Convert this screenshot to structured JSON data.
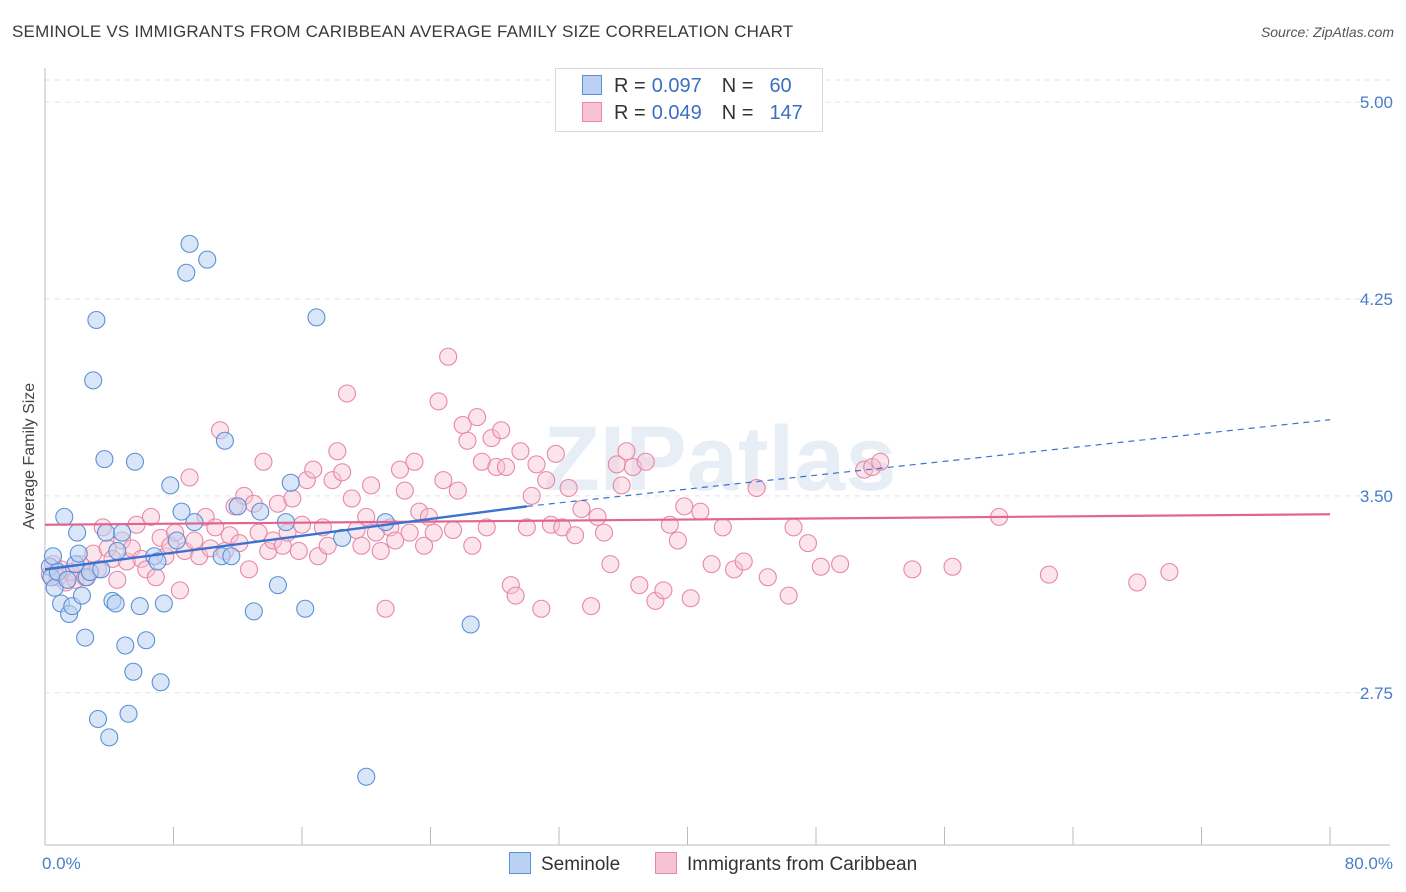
{
  "header": {
    "title": "SEMINOLE VS IMMIGRANTS FROM CARIBBEAN AVERAGE FAMILY SIZE CORRELATION CHART",
    "source": "Source: ZipAtlas.com"
  },
  "legend": {
    "rows": [
      {
        "r_label": "R =",
        "r_value": "0.097",
        "n_label": "N =",
        "n_value": "60"
      },
      {
        "r_label": "R =",
        "r_value": "0.049",
        "n_label": "N =",
        "n_value": "147"
      }
    ]
  },
  "watermark": "ZIPatlas",
  "colors": {
    "seminole_fill": "#b9d2f2",
    "seminole_stroke": "#5b8fd6",
    "seminole_line": "#3a72cf",
    "caribbean_fill": "#f7c3d3",
    "caribbean_stroke": "#e886a6",
    "caribbean_line": "#e0668f",
    "tick_label": "#4a7cc7",
    "grid": "#e2e2e2"
  },
  "chart_data": {
    "type": "scatter",
    "title": "SEMINOLE VS IMMIGRANTS FROM CARIBBEAN AVERAGE FAMILY SIZE CORRELATION CHART",
    "xlabel": "",
    "ylabel": "Average Family Size",
    "xlim": [
      0,
      80
    ],
    "ylim": [
      2.17,
      5.13
    ],
    "x_tick_labels": [
      "0.0%",
      "80.0%"
    ],
    "y_ticks": [
      2.75,
      3.5,
      4.25,
      5.0
    ],
    "y_tick_labels": [
      "2.75",
      "3.50",
      "4.25",
      "5.00"
    ],
    "grid": true,
    "legend_position": "bottom",
    "series": [
      {
        "name": "Seminole",
        "r": 0.097,
        "n": 60,
        "trend": {
          "x0": 0,
          "y0": 3.22,
          "x1": 30,
          "y1": 3.46,
          "x_ext": 80,
          "y_ext": 3.79
        },
        "points": [
          [
            0.3,
            3.23
          ],
          [
            0.4,
            3.19
          ],
          [
            0.5,
            3.27
          ],
          [
            0.6,
            3.15
          ],
          [
            0.8,
            3.21
          ],
          [
            1.0,
            3.09
          ],
          [
            1.2,
            3.42
          ],
          [
            1.4,
            3.18
          ],
          [
            1.5,
            3.05
          ],
          [
            1.7,
            3.08
          ],
          [
            1.9,
            3.24
          ],
          [
            2.0,
            3.36
          ],
          [
            2.1,
            3.28
          ],
          [
            2.3,
            3.12
          ],
          [
            2.5,
            2.96
          ],
          [
            2.6,
            3.19
          ],
          [
            2.8,
            3.21
          ],
          [
            3.0,
            3.94
          ],
          [
            3.2,
            4.17
          ],
          [
            3.3,
            2.65
          ],
          [
            3.5,
            3.22
          ],
          [
            3.7,
            3.64
          ],
          [
            3.8,
            3.36
          ],
          [
            4.0,
            2.58
          ],
          [
            4.2,
            3.1
          ],
          [
            4.4,
            3.09
          ],
          [
            4.5,
            3.29
          ],
          [
            4.8,
            3.36
          ],
          [
            5.0,
            2.93
          ],
          [
            5.2,
            2.67
          ],
          [
            5.5,
            2.83
          ],
          [
            5.6,
            3.63
          ],
          [
            5.9,
            3.08
          ],
          [
            6.3,
            2.95
          ],
          [
            6.8,
            3.27
          ],
          [
            7.0,
            3.25
          ],
          [
            7.2,
            2.79
          ],
          [
            7.4,
            3.09
          ],
          [
            7.8,
            3.54
          ],
          [
            8.2,
            3.33
          ],
          [
            8.5,
            3.44
          ],
          [
            8.8,
            4.35
          ],
          [
            9.0,
            4.46
          ],
          [
            9.3,
            3.4
          ],
          [
            10.1,
            4.4
          ],
          [
            11.0,
            3.27
          ],
          [
            11.2,
            3.71
          ],
          [
            11.6,
            3.27
          ],
          [
            12.0,
            3.46
          ],
          [
            13.0,
            3.06
          ],
          [
            13.4,
            3.44
          ],
          [
            14.5,
            3.16
          ],
          [
            15.0,
            3.4
          ],
          [
            15.3,
            3.55
          ],
          [
            16.2,
            3.07
          ],
          [
            16.9,
            4.18
          ],
          [
            18.5,
            3.34
          ],
          [
            20.0,
            2.43
          ],
          [
            21.2,
            3.4
          ],
          [
            26.5,
            3.01
          ]
        ]
      },
      {
        "name": "Immigrants from Caribbean",
        "r": 0.049,
        "n": 147,
        "trend": {
          "x0": 0,
          "y0": 3.39,
          "x1": 80,
          "y1": 3.43
        },
        "points": [
          [
            0.3,
            3.2
          ],
          [
            0.5,
            3.24
          ],
          [
            0.8,
            3.19
          ],
          [
            1.0,
            3.22
          ],
          [
            1.3,
            3.17
          ],
          [
            1.6,
            3.21
          ],
          [
            1.9,
            3.18
          ],
          [
            2.2,
            3.24
          ],
          [
            2.5,
            3.19
          ],
          [
            2.8,
            3.21
          ],
          [
            3.0,
            3.28
          ],
          [
            3.3,
            3.22
          ],
          [
            3.6,
            3.38
          ],
          [
            3.9,
            3.3
          ],
          [
            4.2,
            3.26
          ],
          [
            4.5,
            3.18
          ],
          [
            4.8,
            3.33
          ],
          [
            5.1,
            3.25
          ],
          [
            5.4,
            3.3
          ],
          [
            5.7,
            3.39
          ],
          [
            6.0,
            3.26
          ],
          [
            6.3,
            3.22
          ],
          [
            6.6,
            3.42
          ],
          [
            6.9,
            3.19
          ],
          [
            7.2,
            3.34
          ],
          [
            7.5,
            3.27
          ],
          [
            7.8,
            3.31
          ],
          [
            8.1,
            3.36
          ],
          [
            8.4,
            3.14
          ],
          [
            8.7,
            3.29
          ],
          [
            9.0,
            3.57
          ],
          [
            9.3,
            3.33
          ],
          [
            9.6,
            3.27
          ],
          [
            10.0,
            3.42
          ],
          [
            10.3,
            3.3
          ],
          [
            10.6,
            3.38
          ],
          [
            10.9,
            3.75
          ],
          [
            11.2,
            3.29
          ],
          [
            11.5,
            3.35
          ],
          [
            11.8,
            3.46
          ],
          [
            12.1,
            3.32
          ],
          [
            12.4,
            3.5
          ],
          [
            12.7,
            3.22
          ],
          [
            13.0,
            3.47
          ],
          [
            13.3,
            3.36
          ],
          [
            13.6,
            3.63
          ],
          [
            13.9,
            3.29
          ],
          [
            14.2,
            3.33
          ],
          [
            14.5,
            3.47
          ],
          [
            14.8,
            3.31
          ],
          [
            15.1,
            3.36
          ],
          [
            15.4,
            3.49
          ],
          [
            15.8,
            3.29
          ],
          [
            16.0,
            3.39
          ],
          [
            16.3,
            3.56
          ],
          [
            16.7,
            3.6
          ],
          [
            17.0,
            3.27
          ],
          [
            17.3,
            3.38
          ],
          [
            17.6,
            3.31
          ],
          [
            17.9,
            3.56
          ],
          [
            18.2,
            3.67
          ],
          [
            18.5,
            3.59
          ],
          [
            18.8,
            3.89
          ],
          [
            19.1,
            3.49
          ],
          [
            19.4,
            3.37
          ],
          [
            19.7,
            3.31
          ],
          [
            20.0,
            3.42
          ],
          [
            20.3,
            3.54
          ],
          [
            20.6,
            3.36
          ],
          [
            20.9,
            3.29
          ],
          [
            21.2,
            3.07
          ],
          [
            21.5,
            3.38
          ],
          [
            21.8,
            3.33
          ],
          [
            22.1,
            3.6
          ],
          [
            22.4,
            3.52
          ],
          [
            22.7,
            3.36
          ],
          [
            23.0,
            3.63
          ],
          [
            23.3,
            3.44
          ],
          [
            23.6,
            3.31
          ],
          [
            23.9,
            3.42
          ],
          [
            24.2,
            3.36
          ],
          [
            24.5,
            3.86
          ],
          [
            24.8,
            3.56
          ],
          [
            25.1,
            4.03
          ],
          [
            25.4,
            3.37
          ],
          [
            25.7,
            3.52
          ],
          [
            26.0,
            3.77
          ],
          [
            26.3,
            3.71
          ],
          [
            26.6,
            3.31
          ],
          [
            26.9,
            3.8
          ],
          [
            27.2,
            3.63
          ],
          [
            27.5,
            3.38
          ],
          [
            27.8,
            3.72
          ],
          [
            28.1,
            3.61
          ],
          [
            28.4,
            3.75
          ],
          [
            28.7,
            3.61
          ],
          [
            29.0,
            3.16
          ],
          [
            29.3,
            3.12
          ],
          [
            29.6,
            3.67
          ],
          [
            30.0,
            3.38
          ],
          [
            30.3,
            3.5
          ],
          [
            30.6,
            3.62
          ],
          [
            30.9,
            3.07
          ],
          [
            31.2,
            3.56
          ],
          [
            31.5,
            3.39
          ],
          [
            31.8,
            3.66
          ],
          [
            32.2,
            3.38
          ],
          [
            32.6,
            3.53
          ],
          [
            33.0,
            3.35
          ],
          [
            33.4,
            3.45
          ],
          [
            34.0,
            3.08
          ],
          [
            34.4,
            3.42
          ],
          [
            34.8,
            3.36
          ],
          [
            35.2,
            3.24
          ],
          [
            35.6,
            3.62
          ],
          [
            35.9,
            3.54
          ],
          [
            36.2,
            3.67
          ],
          [
            36.6,
            3.61
          ],
          [
            37.0,
            3.16
          ],
          [
            37.4,
            3.63
          ],
          [
            38.0,
            3.1
          ],
          [
            38.5,
            3.14
          ],
          [
            38.9,
            3.39
          ],
          [
            39.4,
            3.33
          ],
          [
            39.8,
            3.46
          ],
          [
            40.2,
            3.11
          ],
          [
            40.8,
            3.44
          ],
          [
            41.5,
            3.24
          ],
          [
            42.2,
            3.38
          ],
          [
            42.9,
            3.22
          ],
          [
            43.5,
            3.25
          ],
          [
            44.3,
            3.53
          ],
          [
            45.0,
            3.19
          ],
          [
            46.3,
            3.12
          ],
          [
            46.6,
            3.38
          ],
          [
            47.5,
            3.32
          ],
          [
            48.3,
            3.23
          ],
          [
            49.5,
            3.24
          ],
          [
            51.0,
            3.6
          ],
          [
            51.5,
            3.61
          ],
          [
            52.0,
            3.63
          ],
          [
            54.0,
            3.22
          ],
          [
            56.5,
            3.23
          ],
          [
            59.4,
            3.42
          ],
          [
            62.5,
            3.2
          ],
          [
            68.0,
            3.17
          ],
          [
            70.0,
            3.21
          ]
        ]
      }
    ]
  }
}
